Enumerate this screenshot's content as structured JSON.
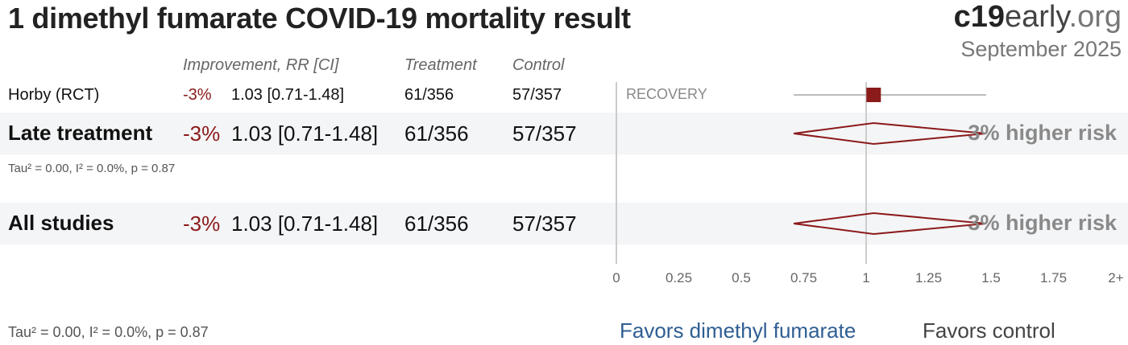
{
  "header": {
    "title": "1 dimethyl fumarate COVID-19 mortality result",
    "brand_bold": "c19",
    "brand_mid": "early",
    "brand_tail": ".org",
    "date": "September 2025"
  },
  "columns": {
    "improvement": "Improvement, RR [CI]",
    "treatment": "Treatment",
    "control": "Control"
  },
  "rows": [
    {
      "name": "Horby (RCT)",
      "improvement": "-3%",
      "rr": "1.03 [0.71-1.48]",
      "treatment": "61/356",
      "control": "57/357",
      "study": "RECOVERY"
    },
    {
      "name": "Late treatment",
      "improvement": "-3%",
      "rr": "1.03 [0.71-1.48]",
      "treatment": "61/356",
      "control": "57/357",
      "risk": "3% higher risk",
      "stats": "Tau² = 0.00, I² = 0.0%, p = 0.87"
    },
    {
      "name": "All studies",
      "improvement": "-3%",
      "rr": "1.03 [0.71-1.48]",
      "treatment": "61/356",
      "control": "57/357",
      "risk": "3% higher risk"
    }
  ],
  "footer_stats": "Tau² = 0.00, I² = 0.0%, p = 0.87",
  "favors": {
    "treatment": "Favors dimethyl fumarate",
    "control": "Favors control"
  },
  "colors": {
    "estimate": "#8b1a1a",
    "favors_treatment": "#2f5e93",
    "band": "#f4f5f7"
  },
  "chart_data": {
    "type": "forest",
    "xlim": [
      0,
      2
    ],
    "reference_line": 1,
    "tick_labels": [
      "0",
      "0.25",
      "0.5",
      "0.75",
      "1",
      "1.25",
      "1.5",
      "1.75",
      "2+"
    ],
    "tick_values": [
      0,
      0.25,
      0.5,
      0.75,
      1,
      1.25,
      1.5,
      1.75,
      2
    ],
    "studies": [
      {
        "name": "Horby (RCT)",
        "rr": 1.03,
        "lo": 0.71,
        "hi": 1.48
      }
    ],
    "pooled": [
      {
        "name": "Late treatment",
        "rr": 1.03,
        "lo": 0.71,
        "hi": 1.48
      },
      {
        "name": "All studies",
        "rr": 1.03,
        "lo": 0.71,
        "hi": 1.48
      }
    ]
  }
}
